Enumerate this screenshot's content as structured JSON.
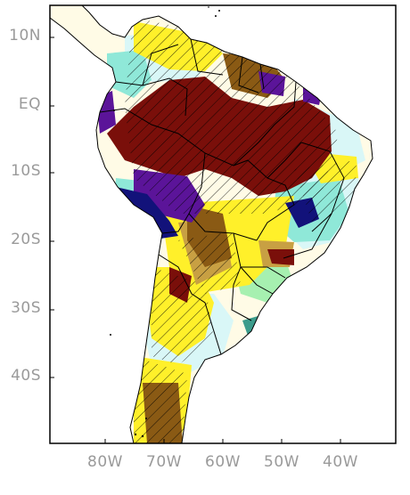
{
  "map": {
    "lat_labels": [
      "10N",
      "EQ",
      "10S",
      "20S",
      "30S",
      "40S"
    ],
    "lon_labels": [
      "80W",
      "70W",
      "60W",
      "50W",
      "40W"
    ],
    "colors": {
      "frame": "#000000",
      "ocean": "#ffffff",
      "land_base": "#fffbe6",
      "pale_cyan": "#d9f7f7",
      "aqua": "#8fe8d8",
      "mint": "#a6f0b0",
      "teal": "#3c9c8c",
      "navy": "#12127a",
      "purple": "#5b1499",
      "yellow": "#fff02a",
      "tan": "#c8a043",
      "brown": "#8a5a14",
      "dark_red": "#7a0f0a",
      "hatch": "#000000",
      "label": "#9a9a9a"
    }
  }
}
